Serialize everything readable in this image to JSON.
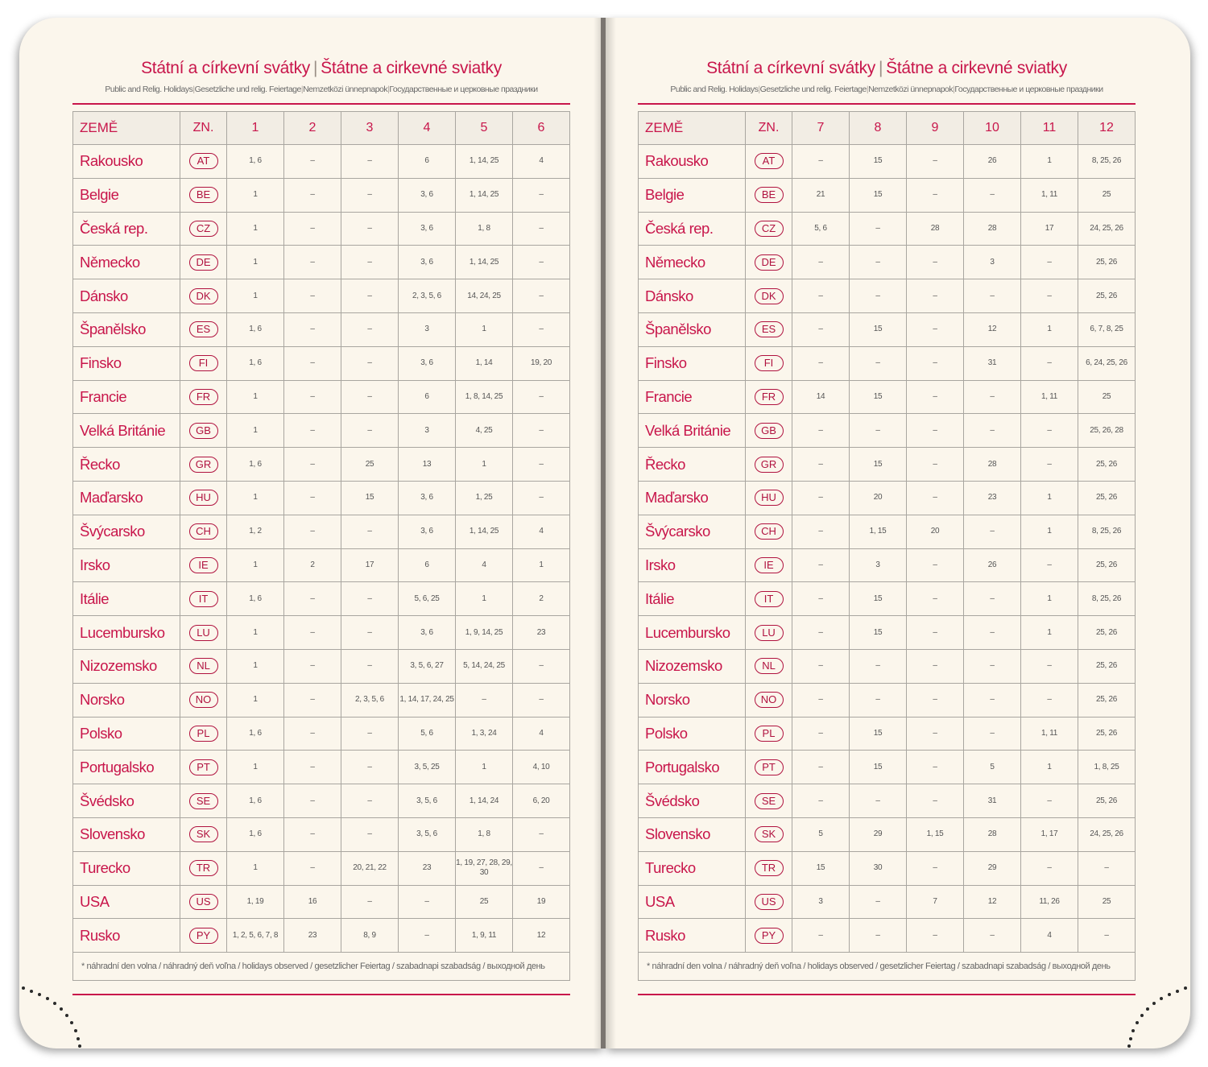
{
  "header": {
    "title_cz": "Státní a církevní svátky",
    "title_sep": "|",
    "title_sk": "Štátne a cirkevné sviatky",
    "subtitle_en": "Public and Relig. Holidays",
    "subtitle_de": "Gesetzliche und relig. Feiertage",
    "subtitle_hu": "Nemzetközi ünnepnapok",
    "subtitle_ru": "Государственные и церковные праздники",
    "sub_sep": "|"
  },
  "columns": {
    "country": "ZEMĚ",
    "code": "ZN."
  },
  "left_months": [
    "1",
    "2",
    "3",
    "4",
    "5",
    "6"
  ],
  "right_months": [
    "7",
    "8",
    "9",
    "10",
    "11",
    "12"
  ],
  "rows": [
    {
      "name": "Rakousko",
      "code": "AT",
      "m": [
        "1, 6",
        "–",
        "–",
        "6",
        "1, 14, 25",
        "4",
        "–",
        "15",
        "–",
        "26",
        "1",
        "8, 25, 26"
      ]
    },
    {
      "name": "Belgie",
      "code": "BE",
      "m": [
        "1",
        "–",
        "–",
        "3, 6",
        "1, 14, 25",
        "–",
        "21",
        "15",
        "–",
        "–",
        "1, 11",
        "25"
      ]
    },
    {
      "name": "Česká rep.",
      "code": "CZ",
      "m": [
        "1",
        "–",
        "–",
        "3, 6",
        "1, 8",
        "–",
        "5, 6",
        "–",
        "28",
        "28",
        "17",
        "24, 25, 26"
      ]
    },
    {
      "name": "Německo",
      "code": "DE",
      "m": [
        "1",
        "–",
        "–",
        "3, 6",
        "1, 14, 25",
        "–",
        "–",
        "–",
        "–",
        "3",
        "–",
        "25, 26"
      ]
    },
    {
      "name": "Dánsko",
      "code": "DK",
      "m": [
        "1",
        "–",
        "–",
        "2, 3, 5, 6",
        "14, 24, 25",
        "–",
        "–",
        "–",
        "–",
        "–",
        "–",
        "25, 26"
      ]
    },
    {
      "name": "Španělsko",
      "code": "ES",
      "m": [
        "1, 6",
        "–",
        "–",
        "3",
        "1",
        "–",
        "–",
        "15",
        "–",
        "12",
        "1",
        "6, 7, 8, 25"
      ]
    },
    {
      "name": "Finsko",
      "code": "FI",
      "m": [
        "1, 6",
        "–",
        "–",
        "3, 6",
        "1, 14",
        "19, 20",
        "–",
        "–",
        "–",
        "31",
        "–",
        "6, 24, 25, 26"
      ]
    },
    {
      "name": "Francie",
      "code": "FR",
      "m": [
        "1",
        "–",
        "–",
        "6",
        "1, 8, 14, 25",
        "–",
        "14",
        "15",
        "–",
        "–",
        "1, 11",
        "25"
      ]
    },
    {
      "name": "Velká Británie",
      "code": "GB",
      "m": [
        "1",
        "–",
        "–",
        "3",
        "4, 25",
        "–",
        "–",
        "–",
        "–",
        "–",
        "–",
        "25, 26, 28"
      ]
    },
    {
      "name": "Řecko",
      "code": "GR",
      "m": [
        "1, 6",
        "–",
        "25",
        "13",
        "1",
        "–",
        "–",
        "15",
        "–",
        "28",
        "–",
        "25, 26"
      ]
    },
    {
      "name": "Maďarsko",
      "code": "HU",
      "m": [
        "1",
        "–",
        "15",
        "3, 6",
        "1, 25",
        "–",
        "–",
        "20",
        "–",
        "23",
        "1",
        "25, 26"
      ]
    },
    {
      "name": "Švýcarsko",
      "code": "CH",
      "m": [
        "1, 2",
        "–",
        "–",
        "3, 6",
        "1, 14, 25",
        "4",
        "–",
        "1, 15",
        "20",
        "–",
        "1",
        "8, 25, 26"
      ]
    },
    {
      "name": "Irsko",
      "code": "IE",
      "m": [
        "1",
        "2",
        "17",
        "6",
        "4",
        "1",
        "–",
        "3",
        "–",
        "26",
        "–",
        "25, 26"
      ]
    },
    {
      "name": "Itálie",
      "code": "IT",
      "m": [
        "1, 6",
        "–",
        "–",
        "5, 6, 25",
        "1",
        "2",
        "–",
        "15",
        "–",
        "–",
        "1",
        "8, 25, 26"
      ]
    },
    {
      "name": "Lucembursko",
      "code": "LU",
      "m": [
        "1",
        "–",
        "–",
        "3, 6",
        "1, 9, 14, 25",
        "23",
        "–",
        "15",
        "–",
        "–",
        "1",
        "25, 26"
      ]
    },
    {
      "name": "Nizozemsko",
      "code": "NL",
      "m": [
        "1",
        "–",
        "–",
        "3, 5, 6, 27",
        "5, 14, 24, 25",
        "–",
        "–",
        "–",
        "–",
        "–",
        "–",
        "25, 26"
      ]
    },
    {
      "name": "Norsko",
      "code": "NO",
      "m": [
        "1",
        "–",
        "2, 3, 5, 6",
        "1, 14, 17, 24, 25",
        "–",
        "–",
        "–",
        "–",
        "–",
        "–",
        "–",
        "25, 26"
      ]
    },
    {
      "name": "Polsko",
      "code": "PL",
      "m": [
        "1, 6",
        "–",
        "–",
        "5, 6",
        "1, 3, 24",
        "4",
        "–",
        "15",
        "–",
        "–",
        "1, 11",
        "25, 26"
      ]
    },
    {
      "name": "Portugalsko",
      "code": "PT",
      "m": [
        "1",
        "–",
        "–",
        "3, 5, 25",
        "1",
        "4, 10",
        "–",
        "15",
        "–",
        "5",
        "1",
        "1, 8, 25"
      ]
    },
    {
      "name": "Švédsko",
      "code": "SE",
      "m": [
        "1, 6",
        "–",
        "–",
        "3, 5, 6",
        "1, 14, 24",
        "6, 20",
        "–",
        "–",
        "–",
        "31",
        "–",
        "25, 26"
      ]
    },
    {
      "name": "Slovensko",
      "code": "SK",
      "m": [
        "1, 6",
        "–",
        "–",
        "3, 5, 6",
        "1, 8",
        "–",
        "5",
        "29",
        "1, 15",
        "28",
        "1, 17",
        "24, 25, 26"
      ]
    },
    {
      "name": "Turecko",
      "code": "TR",
      "m": [
        "1",
        "–",
        "20, 21, 22",
        "23",
        "1, 19, 27, 28, 29, 30",
        "–",
        "15",
        "30",
        "–",
        "29",
        "–",
        "–"
      ]
    },
    {
      "name": "USA",
      "code": "US",
      "m": [
        "1, 19",
        "16",
        "–",
        "–",
        "25",
        "19",
        "3",
        "–",
        "7",
        "12",
        "11, 26",
        "25"
      ]
    },
    {
      "name": "Rusko",
      "code": "PY",
      "m": [
        "1, 2, 5, 6, 7, 8",
        "23",
        "8, 9",
        "–",
        "1, 9, 11",
        "12",
        "–",
        "–",
        "–",
        "–",
        "4",
        "–"
      ]
    }
  ],
  "footnote": "* náhradní den volna / náhradný deň voľna / holidays observed / gesetzlicher Feiertag / szabadnapi szabadság / выходной день"
}
